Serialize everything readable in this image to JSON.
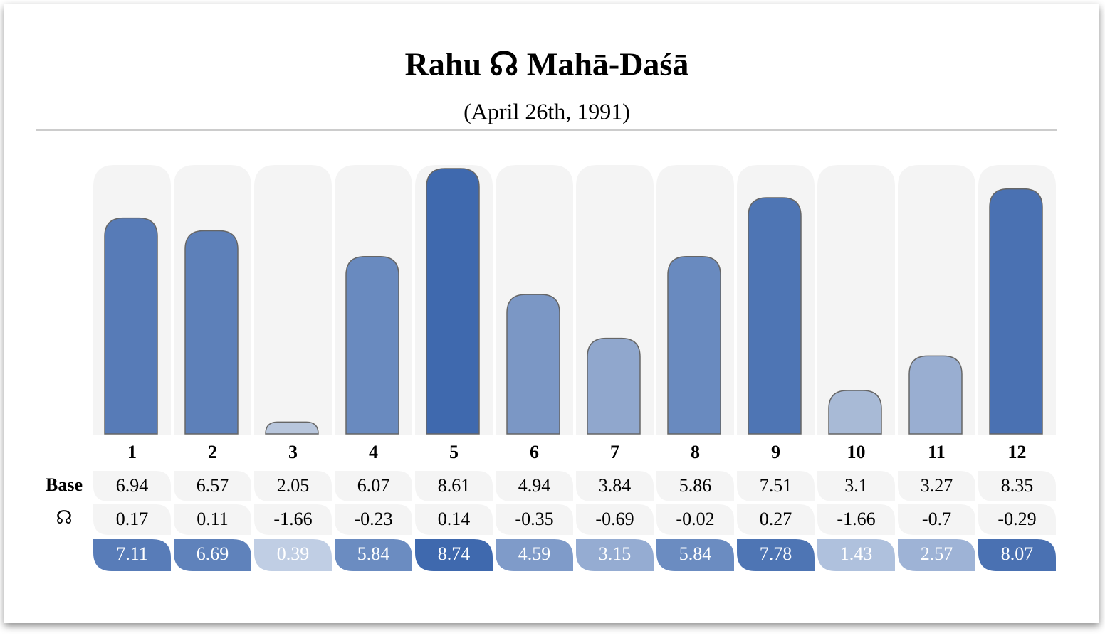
{
  "chart_data": {
    "type": "bar",
    "title": "Rahu ☊ Mahā-Daśā",
    "subtitle": "(April 26th, 1991)",
    "categories": [
      "1",
      "2",
      "3",
      "4",
      "5",
      "6",
      "7",
      "8",
      "9",
      "10",
      "11",
      "12"
    ],
    "series": [
      {
        "name": "Base",
        "values": [
          6.94,
          6.57,
          2.05,
          6.07,
          8.61,
          4.94,
          3.84,
          5.86,
          7.51,
          3.1,
          3.27,
          8.35
        ]
      },
      {
        "name": "☊",
        "values": [
          0.17,
          0.11,
          -1.66,
          -0.23,
          0.14,
          -0.35,
          -0.69,
          -0.02,
          0.27,
          -1.66,
          -0.7,
          -0.29
        ]
      }
    ],
    "values": [
      7.11,
      6.69,
      0.39,
      5.84,
      8.74,
      4.59,
      3.15,
      5.84,
      7.78,
      1.43,
      2.57,
      8.07
    ],
    "color": "#3f69ae"
  }
}
